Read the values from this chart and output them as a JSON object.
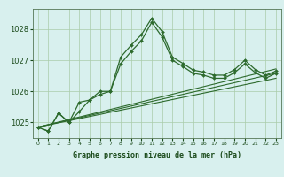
{
  "background_color": "#d8f0ee",
  "plot_bg_color": "#d8f0ee",
  "label_bg_color": "#e8f8f0",
  "grid_color": "#aaccaa",
  "line_color": "#2d6a2d",
  "xlabel": "Graphe pression niveau de la mer (hPa)",
  "ylim": [
    1024.5,
    1028.65
  ],
  "xlim": [
    -0.5,
    23.5
  ],
  "yticks": [
    1025,
    1026,
    1027,
    1028
  ],
  "xticks": [
    0,
    1,
    2,
    3,
    4,
    5,
    6,
    7,
    8,
    9,
    10,
    11,
    12,
    13,
    14,
    15,
    16,
    17,
    18,
    19,
    20,
    21,
    22,
    23
  ],
  "series1_x": [
    0,
    1,
    2,
    3,
    4,
    5,
    6,
    7,
    8,
    9,
    10,
    11,
    12,
    13,
    14,
    15,
    16,
    17,
    18,
    19,
    20,
    21,
    22,
    23
  ],
  "series1_y": [
    1024.85,
    1024.72,
    1025.3,
    1025.0,
    1025.65,
    1025.72,
    1026.0,
    1026.0,
    1027.1,
    1027.48,
    1027.82,
    1028.35,
    1027.92,
    1027.1,
    1026.9,
    1026.68,
    1026.62,
    1026.52,
    1026.52,
    1026.7,
    1027.0,
    1026.7,
    1026.52,
    1026.65
  ],
  "series2_x": [
    0,
    1,
    2,
    3,
    4,
    5,
    6,
    7,
    8,
    9,
    10,
    11,
    12,
    13,
    14,
    15,
    16,
    17,
    18,
    19,
    20,
    21,
    22,
    23
  ],
  "series2_y": [
    1024.85,
    1024.72,
    1025.3,
    1025.0,
    1025.35,
    1025.72,
    1025.9,
    1026.0,
    1026.88,
    1027.28,
    1027.62,
    1028.22,
    1027.75,
    1027.0,
    1026.8,
    1026.58,
    1026.52,
    1026.42,
    1026.42,
    1026.6,
    1026.88,
    1026.6,
    1026.42,
    1026.58
  ],
  "trend1_x": [
    0,
    23
  ],
  "trend1_y": [
    1024.85,
    1026.42
  ],
  "trend2_x": [
    0,
    23
  ],
  "trend2_y": [
    1024.85,
    1026.58
  ],
  "trend3_x": [
    0,
    23
  ],
  "trend3_y": [
    1024.85,
    1026.72
  ]
}
